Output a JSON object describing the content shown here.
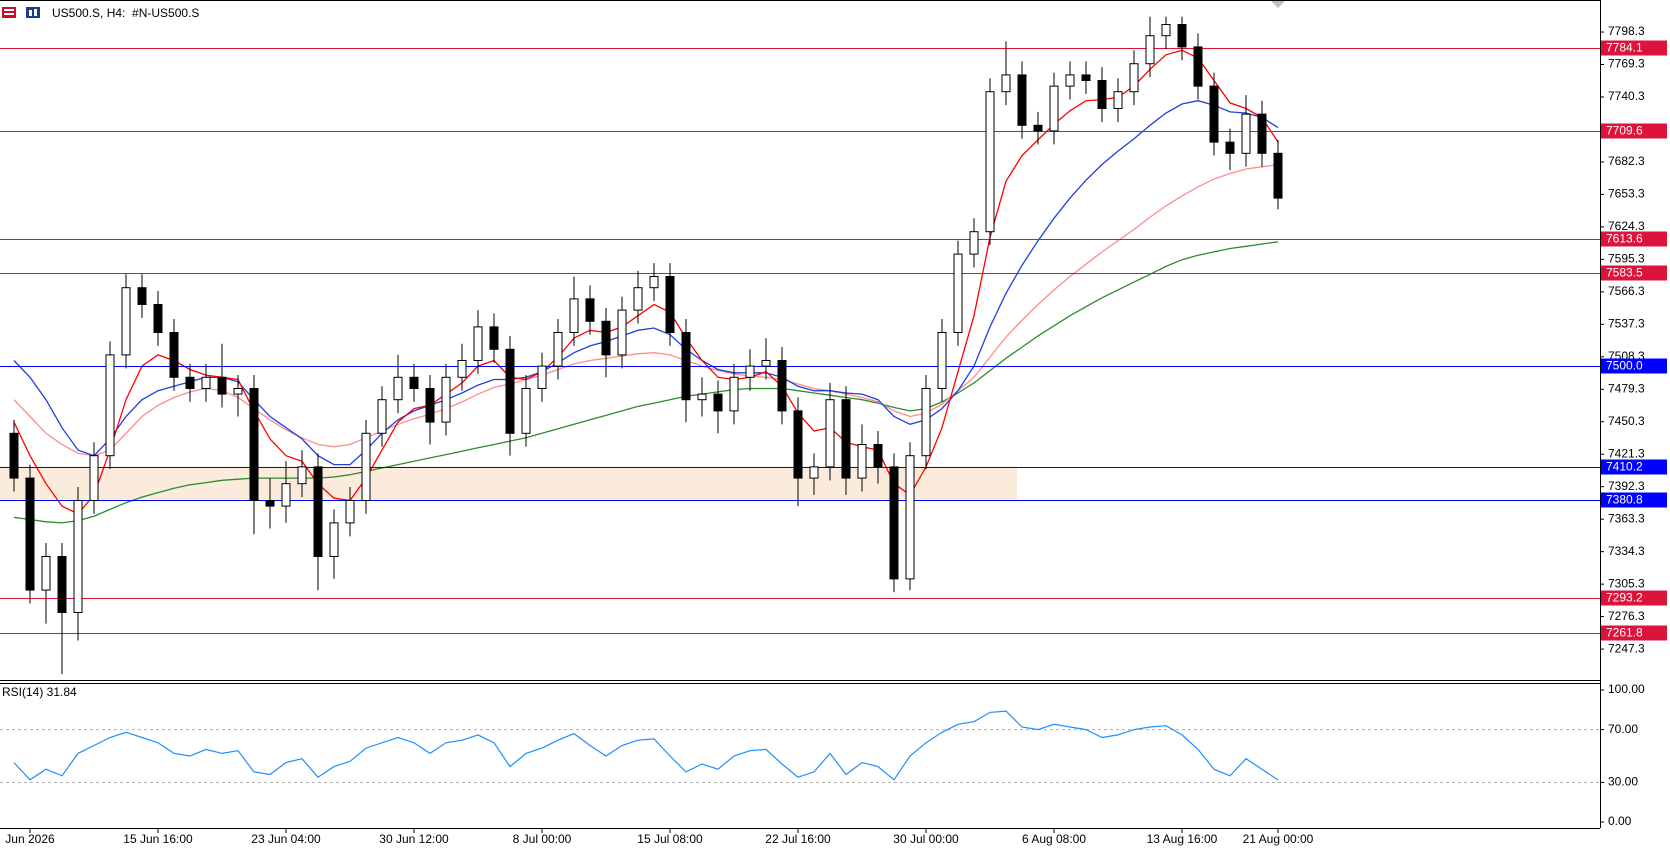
{
  "chart_data": [
    {
      "type": "candlestick",
      "title": "US500.S, H4:  #N-US500.S",
      "categories": [
        null,
        "Jun 2026",
        null,
        null,
        null,
        null,
        null,
        null,
        null,
        "15 Jun 16:00",
        null,
        null,
        null,
        null,
        null,
        null,
        null,
        "23 Jun 04:00",
        null,
        null,
        null,
        null,
        null,
        null,
        null,
        "30 Jun 12:00",
        null,
        null,
        null,
        null,
        null,
        null,
        null,
        "8 Jul 00:00",
        null,
        null,
        null,
        null,
        null,
        null,
        null,
        "15 Jul 08:00",
        null,
        null,
        null,
        null,
        null,
        null,
        null,
        "22 Jul 16:00",
        null,
        null,
        null,
        null,
        null,
        null,
        null,
        "30 Jul 00:00",
        null,
        null,
        null,
        null,
        null,
        null,
        null,
        "6 Aug 08:00",
        null,
        null,
        null,
        null,
        null,
        null,
        null,
        "13 Aug 16:00",
        null,
        null,
        null,
        null,
        null,
        "21 Aug 00:00"
      ],
      "open": [
        7440,
        7400,
        7300,
        7330,
        7280,
        7380,
        7420,
        7510,
        7570,
        7555,
        7530,
        7490,
        7480,
        7490,
        7475,
        7480,
        7380,
        7375,
        7395,
        7410,
        7330,
        7360,
        7380,
        7440,
        7470,
        7490,
        7480,
        7450,
        7490,
        7505,
        7535,
        7515,
        7440,
        7480,
        7500,
        7530,
        7560,
        7540,
        7510,
        7550,
        7570,
        7580,
        7530,
        7470,
        7475,
        7460,
        7490,
        7500,
        7505,
        7460,
        7400,
        7410,
        7470,
        7400,
        7430,
        7410,
        7310,
        7420,
        7480,
        7530,
        7600,
        7620,
        7745,
        7760,
        7715,
        7710,
        7750,
        7760,
        7755,
        7730,
        7745,
        7770,
        7795,
        7805,
        7785,
        7750,
        7700,
        7690,
        7725,
        7690
      ],
      "high": [
        7452,
        7412,
        7342,
        7342,
        7392,
        7432,
        7522,
        7582,
        7582,
        7567,
        7542,
        7502,
        7502,
        7520,
        7492,
        7492,
        7400,
        7415,
        7425,
        7422,
        7372,
        7392,
        7452,
        7482,
        7510,
        7502,
        7492,
        7502,
        7520,
        7550,
        7547,
        7527,
        7492,
        7512,
        7542,
        7580,
        7572,
        7552,
        7562,
        7585,
        7592,
        7592,
        7542,
        7490,
        7487,
        7502,
        7515,
        7525,
        7517,
        7472,
        7422,
        7485,
        7482,
        7448,
        7442,
        7422,
        7432,
        7492,
        7542,
        7612,
        7632,
        7757,
        7790,
        7772,
        7727,
        7762,
        7772,
        7772,
        7767,
        7757,
        7782,
        7812,
        7812,
        7812,
        7797,
        7762,
        7712,
        7742,
        7737,
        7702
      ],
      "low": [
        7388,
        7288,
        7270,
        7225,
        7255,
        7368,
        7408,
        7498,
        7543,
        7518,
        7478,
        7468,
        7468,
        7463,
        7455,
        7350,
        7355,
        7360,
        7383,
        7300,
        7310,
        7348,
        7368,
        7428,
        7458,
        7468,
        7430,
        7438,
        7478,
        7493,
        7503,
        7420,
        7428,
        7468,
        7488,
        7518,
        7528,
        7490,
        7498,
        7538,
        7558,
        7518,
        7450,
        7455,
        7440,
        7448,
        7478,
        7488,
        7448,
        7375,
        7385,
        7398,
        7385,
        7388,
        7395,
        7298,
        7300,
        7408,
        7468,
        7518,
        7588,
        7608,
        7733,
        7703,
        7698,
        7698,
        7738,
        7743,
        7718,
        7718,
        7733,
        7758,
        7783,
        7773,
        7738,
        7688,
        7675,
        7678,
        7678,
        7640
      ],
      "close": [
        7400,
        7300,
        7330,
        7280,
        7380,
        7420,
        7510,
        7570,
        7555,
        7530,
        7490,
        7480,
        7490,
        7475,
        7480,
        7380,
        7375,
        7395,
        7410,
        7330,
        7360,
        7380,
        7440,
        7470,
        7490,
        7480,
        7450,
        7490,
        7505,
        7535,
        7515,
        7440,
        7480,
        7500,
        7530,
        7560,
        7540,
        7510,
        7550,
        7570,
        7580,
        7530,
        7470,
        7475,
        7460,
        7490,
        7500,
        7505,
        7460,
        7400,
        7410,
        7470,
        7400,
        7430,
        7410,
        7310,
        7420,
        7480,
        7530,
        7600,
        7620,
        7745,
        7760,
        7715,
        7710,
        7750,
        7760,
        7755,
        7730,
        7745,
        7770,
        7795,
        7805,
        7785,
        7750,
        7700,
        7690,
        7725,
        7690,
        7650
      ],
      "ma": [
        {
          "color": "#2e8b2e",
          "values": [
            7365,
            7363,
            7361,
            7360,
            7362,
            7366,
            7372,
            7378,
            7383,
            7387,
            7391,
            7394,
            7396,
            7398,
            7399,
            7400,
            7400,
            7400,
            7400,
            7400,
            7401,
            7403,
            7406,
            7409,
            7412,
            7415,
            7418,
            7421,
            7424,
            7427,
            7430,
            7433,
            7436,
            7440,
            7444,
            7448,
            7452,
            7456,
            7460,
            7464,
            7467,
            7470,
            7473,
            7475,
            7477,
            7479,
            7480,
            7480,
            7480,
            7478,
            7476,
            7474,
            7472,
            7470,
            7467,
            7463,
            7460,
            7462,
            7468,
            7476,
            7485,
            7496,
            7507,
            7517,
            7527,
            7536,
            7545,
            7553,
            7561,
            7568,
            7575,
            7582,
            7589,
            7595,
            7599,
            7602,
            7605,
            7607,
            7609,
            7611
          ]
        },
        {
          "color": "#ff8c8c",
          "values": [
            7470,
            7455,
            7440,
            7430,
            7422,
            7420,
            7425,
            7440,
            7455,
            7465,
            7472,
            7477,
            7480,
            7478,
            7472,
            7462,
            7452,
            7443,
            7436,
            7430,
            7428,
            7430,
            7436,
            7442,
            7448,
            7453,
            7457,
            7462,
            7468,
            7475,
            7481,
            7484,
            7488,
            7492,
            7497,
            7502,
            7505,
            7507,
            7509,
            7511,
            7512,
            7510,
            7505,
            7500,
            7496,
            7493,
            7491,
            7490,
            7488,
            7484,
            7480,
            7478,
            7475,
            7472,
            7468,
            7460,
            7455,
            7458,
            7466,
            7478,
            7490,
            7508,
            7526,
            7541,
            7555,
            7568,
            7580,
            7591,
            7602,
            7612,
            7622,
            7633,
            7643,
            7652,
            7660,
            7667,
            7672,
            7676,
            7678,
            7680
          ]
        },
        {
          "color": "#1f3fe0",
          "values": [
            7505,
            7490,
            7470,
            7445,
            7425,
            7420,
            7435,
            7455,
            7470,
            7478,
            7482,
            7486,
            7490,
            7490,
            7486,
            7470,
            7455,
            7445,
            7435,
            7420,
            7412,
            7412,
            7425,
            7440,
            7452,
            7460,
            7465,
            7470,
            7476,
            7483,
            7488,
            7488,
            7490,
            7495,
            7503,
            7512,
            7518,
            7522,
            7527,
            7532,
            7534,
            7528,
            7515,
            7505,
            7497,
            7494,
            7494,
            7494,
            7490,
            7482,
            7478,
            7478,
            7476,
            7475,
            7470,
            7455,
            7448,
            7452,
            7462,
            7478,
            7500,
            7535,
            7565,
            7590,
            7612,
            7632,
            7650,
            7666,
            7680,
            7692,
            7703,
            7715,
            7726,
            7734,
            7737,
            7733,
            7727,
            7726,
            7722,
            7713
          ]
        },
        {
          "color": "#ff0000",
          "values": [
            7450,
            7420,
            7395,
            7375,
            7368,
            7385,
            7425,
            7470,
            7500,
            7510,
            7505,
            7497,
            7492,
            7490,
            7488,
            7460,
            7435,
            7420,
            7415,
            7395,
            7382,
            7380,
            7400,
            7425,
            7450,
            7462,
            7465,
            7475,
            7485,
            7500,
            7505,
            7490,
            7488,
            7495,
            7508,
            7525,
            7532,
            7530,
            7535,
            7545,
            7555,
            7548,
            7525,
            7505,
            7490,
            7488,
            7490,
            7495,
            7482,
            7458,
            7442,
            7445,
            7432,
            7428,
            7425,
            7395,
            7385,
            7410,
            7445,
            7495,
            7545,
            7615,
            7665,
            7688,
            7702,
            7716,
            7728,
            7737,
            7738,
            7740,
            7750,
            7765,
            7778,
            7782,
            7775,
            7755,
            7735,
            7730,
            7722,
            7700
          ]
        }
      ],
      "hlines": [
        {
          "value": 7784.1,
          "color": "#dc143c"
        },
        {
          "value": 7709.6,
          "color": "#dc143c"
        },
        {
          "value": 7613.6,
          "color": "#dc143c"
        },
        {
          "value": 7583.5,
          "color": "#dc143c"
        },
        {
          "value": {
            "value": 7500,
            "label": "7500.0"
          },
          "color": "#0000ff"
        },
        {
          "value": 7410.2,
          "color": "#0000ff"
        },
        {
          "value": 7380.8,
          "color": "#0000ff"
        },
        {
          "value": 7293.2,
          "color": "#dc143c"
        },
        {
          "value": 7261.8,
          "color": "#dc143c"
        }
      ],
      "ylim": [
        7219.7,
        7826.9
      ],
      "yticks": [
        7798.3,
        7769.3,
        7740.3,
        7682.3,
        7653.3,
        7624.3,
        7595.3,
        7566.3,
        7537.3,
        7508.3,
        7479.3,
        7450.3,
        7421.3,
        7392.3,
        7363.3,
        7334.3,
        7305.3,
        7276.3,
        7247.3
      ]
    },
    {
      "type": "line",
      "title": "RSI(14) 31.84",
      "color": "#1e90ff",
      "values": [
        45,
        32,
        40,
        35,
        52,
        58,
        64,
        68,
        64,
        60,
        52,
        50,
        55,
        52,
        54,
        38,
        36,
        45,
        48,
        34,
        42,
        46,
        56,
        60,
        64,
        60,
        52,
        60,
        62,
        66,
        60,
        42,
        52,
        56,
        62,
        67,
        58,
        50,
        58,
        62,
        63,
        50,
        38,
        44,
        40,
        50,
        54,
        55,
        44,
        34,
        38,
        52,
        36,
        45,
        42,
        32,
        50,
        60,
        68,
        74,
        76,
        83,
        84,
        72,
        70,
        74,
        72,
        70,
        64,
        66,
        70,
        72,
        73,
        66,
        55,
        40,
        35,
        48,
        40,
        31.84
      ],
      "ylim": [
        -4.5,
        105.3
      ],
      "yticks": [
        {
          "value": 100,
          "label": "100.00"
        },
        {
          "value": 70,
          "label": "70.00"
        },
        {
          "value": 30,
          "label": "30.00"
        },
        {
          "value": 0,
          "label": "0.00"
        }
      ]
    }
  ]
}
